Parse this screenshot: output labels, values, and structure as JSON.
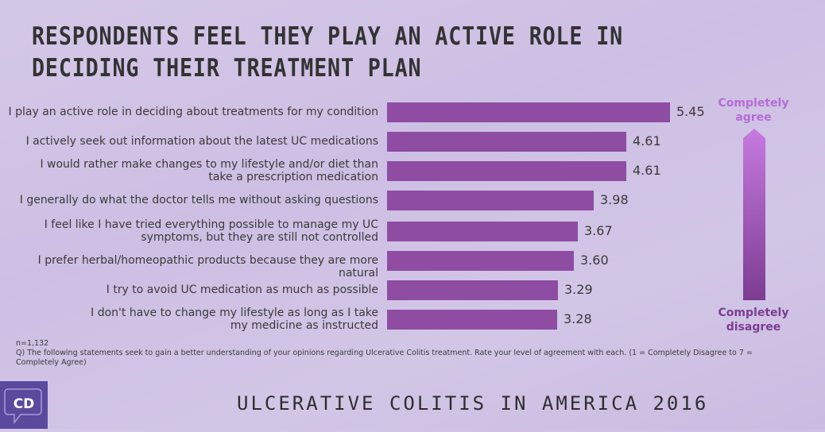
{
  "title": "Respondents feel they play an active role in deciding their treatment plan",
  "chart_data": {
    "type": "bar",
    "orientation": "horizontal",
    "title": "Respondents feel they play an active role in deciding their treatment plan",
    "categories": [
      "I play an active role in deciding about treatments for my condition",
      "I actively seek out information about the latest UC medications",
      "I would rather make changes to my lifestyle and/or diet than take a prescription medication",
      "I generally do what the doctor tells me without asking questions",
      "I feel like I have tried everything possible to manage my UC symptoms, but they are still not controlled",
      "I prefer herbal/homeopathic products because they are more natural",
      "I try to avoid UC medication  as much as possible",
      "I don't have to change my lifestyle as long as I take my medicine as instructed"
    ],
    "values": [
      5.45,
      4.61,
      4.61,
      3.98,
      3.67,
      3.6,
      3.29,
      3.28
    ],
    "value_labels": [
      "5.45",
      "4.61",
      "4.61",
      "3.98",
      "3.67",
      "3.60",
      "3.29",
      "3.28"
    ],
    "xlabel": "",
    "ylabel": "",
    "scale": [
      1,
      7
    ],
    "scale_labels": {
      "top": "Completely agree",
      "bottom": "Completely disagree"
    },
    "bar_color": "#8e4ca3",
    "grid": false
  },
  "labels": [
    "I play an active role in deciding about treatments for my condition",
    "I actively seek out information about the latest UC medications",
    "I would rather make changes to my lifestyle and/or diet than\ntake a prescription medication",
    "I generally do what the doctor tells me without asking questions",
    "I feel like I have tried everything possible to manage my UC\nsymptoms, but they are still not controlled",
    "I prefer herbal/homeopathic products because they are more natural",
    "I try to avoid UC medication  as much as possible",
    "I don't have to change my lifestyle as long as I take\nmy medicine as instructed"
  ],
  "legend": {
    "top": "Completely\nagree",
    "bottom": "Completely\ndisagree",
    "top_color": "#b56cd6",
    "bottom_color": "#7c3c91"
  },
  "notes": {
    "sample": "n=1,132",
    "question": "Q) The following statements seek to gain a better understanding of your opinions regarding Ulcerative Colitis treatment. Rate your level of agreement with each. (1 = Completely Disagree to 7 = Completely Agree)"
  },
  "footer": {
    "title": "Ulcerative Colitis in America 2016",
    "logo_text": "CD",
    "logo_color": "#5a4a9e"
  }
}
